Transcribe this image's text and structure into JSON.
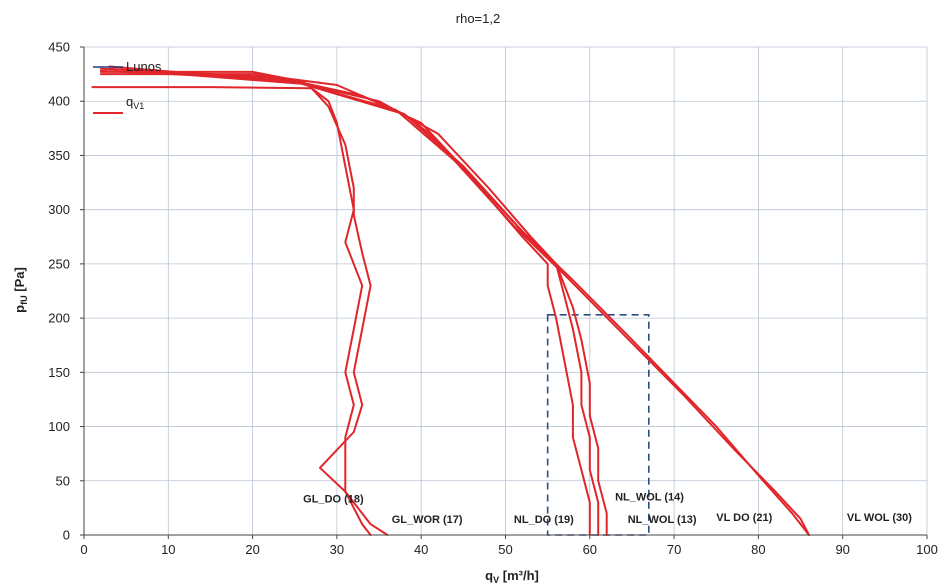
{
  "chart_data": {
    "type": "line",
    "title": "rho=1,2",
    "xlabel": "q",
    "xlabel_sub": "V",
    "xlabel_unit": " [m³/h]",
    "ylabel": "p",
    "ylabel_sub": "fU",
    "ylabel_unit": " [Pa]",
    "xlim": [
      0,
      100
    ],
    "ylim": [
      0,
      450
    ],
    "x_ticks": [
      0,
      10,
      20,
      30,
      40,
      50,
      60,
      70,
      80,
      90,
      100
    ],
    "y_ticks": [
      0,
      50,
      100,
      150,
      200,
      250,
      300,
      350,
      400,
      450
    ],
    "grid": true,
    "legend_position": "top-left",
    "legend": [
      {
        "name": "Lunos",
        "color": "#2f3a7a"
      },
      {
        "name": "q",
        "sub": "V1",
        "color": "#e0262b"
      }
    ],
    "colors": {
      "series": "#e0262b",
      "box": "#2b4f86"
    },
    "series": [
      {
        "name": "GL_DO (18)",
        "points": [
          [
            1,
            413
          ],
          [
            15,
            413
          ],
          [
            27,
            412
          ],
          [
            29,
            395
          ],
          [
            31,
            360
          ],
          [
            32,
            320
          ],
          [
            32,
            295
          ],
          [
            33,
            260
          ],
          [
            34,
            230
          ],
          [
            33,
            190
          ],
          [
            32,
            150
          ],
          [
            33,
            120
          ],
          [
            32,
            95
          ],
          [
            28,
            62
          ],
          [
            31,
            40
          ],
          [
            34,
            10
          ],
          [
            36,
            0
          ]
        ]
      },
      {
        "name": "GL_WOR (17)",
        "points": [
          [
            2,
            427
          ],
          [
            20,
            427
          ],
          [
            26,
            418
          ],
          [
            29,
            400
          ],
          [
            30,
            380
          ],
          [
            31,
            340
          ],
          [
            32,
            300
          ],
          [
            31,
            270
          ],
          [
            33,
            230
          ],
          [
            32,
            190
          ],
          [
            31,
            150
          ],
          [
            32,
            120
          ],
          [
            31,
            90
          ],
          [
            31,
            60
          ],
          [
            31,
            40
          ],
          [
            33,
            10
          ],
          [
            34,
            0
          ]
        ]
      },
      {
        "name": "NL_DO (19)",
        "points": [
          [
            2,
            425
          ],
          [
            20,
            425
          ],
          [
            30,
            415
          ],
          [
            38,
            388
          ],
          [
            41,
            370
          ],
          [
            47,
            320
          ],
          [
            52,
            275
          ],
          [
            55,
            250
          ],
          [
            55,
            230
          ],
          [
            56,
            200
          ],
          [
            57,
            160
          ],
          [
            58,
            120
          ],
          [
            58,
            90
          ],
          [
            59,
            60
          ],
          [
            60,
            30
          ],
          [
            60,
            0
          ]
        ]
      },
      {
        "name": "NL_WOL (13)",
        "points": [
          [
            2,
            430
          ],
          [
            23,
            422
          ],
          [
            33,
            405
          ],
          [
            40,
            380
          ],
          [
            46,
            330
          ],
          [
            52,
            280
          ],
          [
            56,
            250
          ],
          [
            57,
            220
          ],
          [
            58,
            190
          ],
          [
            59,
            150
          ],
          [
            59,
            120
          ],
          [
            60,
            90
          ],
          [
            60,
            60
          ],
          [
            61,
            30
          ],
          [
            61,
            0
          ]
        ]
      },
      {
        "name": "NL_WOL (14)",
        "points": [
          [
            2,
            428
          ],
          [
            24,
            420
          ],
          [
            35,
            400
          ],
          [
            42,
            370
          ],
          [
            48,
            320
          ],
          [
            53,
            275
          ],
          [
            56,
            250
          ],
          [
            58,
            210
          ],
          [
            59,
            180
          ],
          [
            60,
            140
          ],
          [
            60,
            110
          ],
          [
            61,
            80
          ],
          [
            61,
            50
          ],
          [
            62,
            20
          ],
          [
            62,
            0
          ]
        ]
      },
      {
        "name": "VL DO (21)",
        "points": [
          [
            3,
            432
          ],
          [
            25,
            418
          ],
          [
            38,
            388
          ],
          [
            45,
            340
          ],
          [
            52,
            280
          ],
          [
            58,
            235
          ],
          [
            65,
            180
          ],
          [
            70,
            140
          ],
          [
            75,
            100
          ],
          [
            80,
            55
          ],
          [
            84,
            20
          ],
          [
            86,
            0
          ]
        ]
      },
      {
        "name": "VL WOL (30)",
        "points": [
          [
            3,
            430
          ],
          [
            26,
            416
          ],
          [
            37,
            392
          ],
          [
            44,
            345
          ],
          [
            51,
            285
          ],
          [
            57,
            240
          ],
          [
            64,
            185
          ],
          [
            71,
            130
          ],
          [
            77,
            80
          ],
          [
            82,
            40
          ],
          [
            85,
            15
          ],
          [
            86,
            0
          ]
        ]
      }
    ],
    "reference_box": {
      "x": [
        55,
        67
      ],
      "y": [
        0,
        203
      ]
    },
    "annotations": [
      {
        "text": "GL_DO (18)",
        "x": 26,
        "y": 30
      },
      {
        "text": "GL_WOR (17)",
        "x": 36.5,
        "y": 11
      },
      {
        "text": "NL_DO (19)",
        "x": 51,
        "y": 11
      },
      {
        "text": "NL_WOL (14)",
        "x": 63,
        "y": 32
      },
      {
        "text": "NL_WOL (13)",
        "x": 64.5,
        "y": 11
      },
      {
        "text": "VL DO (21)",
        "x": 75,
        "y": 13
      },
      {
        "text": "VL WOL (30)",
        "x": 90.5,
        "y": 13
      }
    ]
  }
}
